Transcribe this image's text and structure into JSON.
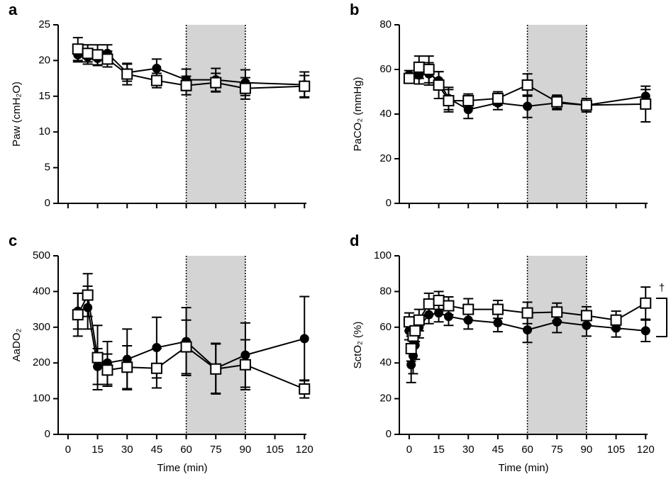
{
  "chart_data": [
    {
      "type": "line",
      "label": "a",
      "y_label": "Paw (cmH₂O)",
      "x_tick_labels": false,
      "xlim": [
        -5,
        121
      ],
      "xticks": [
        0,
        15,
        30,
        45,
        60,
        75,
        90,
        105,
        120
      ],
      "ylim": [
        0,
        25
      ],
      "yticks": [
        0,
        5,
        10,
        15,
        20,
        25
      ],
      "shaded": [
        60,
        90
      ],
      "series": [
        {
          "marker": "circle",
          "color": "#000000",
          "x": [
            5,
            10,
            15,
            20,
            30,
            45,
            60,
            75,
            90,
            120
          ],
          "values": [
            20.8,
            20.5,
            20.3,
            21.0,
            18.3,
            18.9,
            17.3,
            17.3,
            16.9,
            16.6
          ],
          "errors": [
            1.0,
            1.0,
            1.0,
            1.2,
            1.2,
            1.3,
            1.5,
            1.6,
            1.8,
            1.8
          ]
        },
        {
          "marker": "square",
          "color": "#000000",
          "x": [
            5,
            10,
            15,
            20,
            30,
            45,
            60,
            75,
            90,
            120
          ],
          "values": [
            21.6,
            21.0,
            20.8,
            20.2,
            18.1,
            17.2,
            16.5,
            16.9,
            16.1,
            16.4
          ],
          "errors": [
            1.6,
            1.2,
            1.4,
            1.1,
            1.5,
            1.0,
            1.3,
            1.3,
            1.5,
            1.5
          ]
        }
      ]
    },
    {
      "type": "line",
      "label": "b",
      "y_label": "PaCO₂ (mmHg)",
      "x_tick_labels": false,
      "xlim": [
        -5,
        121
      ],
      "xticks": [
        0,
        15,
        30,
        45,
        60,
        75,
        90,
        105,
        120
      ],
      "ylim": [
        0,
        80
      ],
      "yticks": [
        0,
        20,
        40,
        60,
        80
      ],
      "shaded": [
        60,
        90
      ],
      "series": [
        {
          "marker": "circle",
          "color": "#000000",
          "x": [
            0,
            5,
            10,
            15,
            20,
            30,
            45,
            60,
            75,
            90,
            120
          ],
          "values": [
            57.5,
            57.5,
            58,
            55,
            47,
            42,
            45,
            43.5,
            45,
            44,
            48
          ],
          "errors": [
            2,
            4,
            5,
            4,
            5,
            4,
            3,
            5,
            3,
            3,
            3
          ]
        },
        {
          "marker": "square",
          "color": "#000000",
          "x": [
            0,
            5,
            10,
            15,
            20,
            30,
            45,
            60,
            75,
            90,
            120
          ],
          "values": [
            56,
            61,
            60,
            53,
            46,
            46,
            47,
            53,
            45.5,
            44,
            44.5
          ],
          "errors": [
            2,
            5,
            6,
            6,
            5,
            3,
            3,
            5,
            3,
            3,
            8
          ]
        }
      ]
    },
    {
      "type": "line",
      "label": "c",
      "y_label": "AaDO₂",
      "x_label": "Time (min)",
      "x_tick_labels": true,
      "xlim": [
        -5,
        121
      ],
      "xticks": [
        0,
        15,
        30,
        45,
        60,
        75,
        90,
        105,
        120
      ],
      "ylim": [
        0,
        500
      ],
      "yticks": [
        0,
        100,
        200,
        300,
        400,
        500
      ],
      "shaded": [
        60,
        90
      ],
      "series": [
        {
          "marker": "circle",
          "color": "#000000",
          "x": [
            5,
            10,
            15,
            20,
            30,
            45,
            60,
            75,
            90,
            120
          ],
          "values": [
            345,
            355,
            190,
            200,
            210,
            243,
            260,
            185,
            222,
            268
          ],
          "errors": [
            50,
            60,
            50,
            60,
            85,
            85,
            95,
            70,
            90,
            118
          ]
        },
        {
          "marker": "square",
          "color": "#000000",
          "x": [
            5,
            10,
            15,
            20,
            30,
            45,
            60,
            75,
            90,
            120
          ],
          "values": [
            335,
            390,
            215,
            180,
            188,
            185,
            245,
            183,
            195,
            127
          ],
          "errors": [
            60,
            60,
            90,
            45,
            60,
            55,
            75,
            70,
            70,
            25
          ]
        }
      ]
    },
    {
      "type": "line",
      "label": "d",
      "y_label": "SctO₂ (%)",
      "x_label": "Time (min)",
      "x_tick_labels": true,
      "annotation": "†",
      "xlim": [
        -5,
        121
      ],
      "xticks": [
        0,
        15,
        30,
        45,
        60,
        75,
        90,
        105,
        120
      ],
      "ylim": [
        0,
        100
      ],
      "yticks": [
        0,
        20,
        40,
        60,
        80,
        100
      ],
      "shaded": [
        60,
        90
      ],
      "series": [
        {
          "marker": "circle",
          "color": "#000000",
          "x": [
            0,
            1,
            2,
            3,
            5,
            10,
            15,
            20,
            30,
            45,
            60,
            75,
            90,
            105,
            120
          ],
          "values": [
            58,
            39,
            44,
            50,
            60,
            67,
            68,
            66,
            64,
            62.5,
            58.5,
            63,
            61,
            59.5,
            58
          ],
          "errors": [
            5,
            10,
            10,
            8,
            6,
            5,
            5,
            5,
            5,
            5,
            7,
            6,
            6,
            5,
            6
          ]
        },
        {
          "marker": "square",
          "color": "#000000",
          "x": [
            0,
            1,
            2,
            3,
            5,
            10,
            15,
            20,
            30,
            45,
            60,
            75,
            90,
            105,
            120
          ],
          "values": [
            63,
            48,
            55,
            58,
            64,
            73,
            75,
            72,
            70,
            70,
            68,
            68.5,
            66.5,
            64,
            73.5
          ],
          "errors": [
            5,
            7,
            6,
            6,
            6,
            6,
            5,
            5,
            6,
            5,
            6,
            5,
            5,
            5,
            9
          ]
        }
      ]
    }
  ]
}
